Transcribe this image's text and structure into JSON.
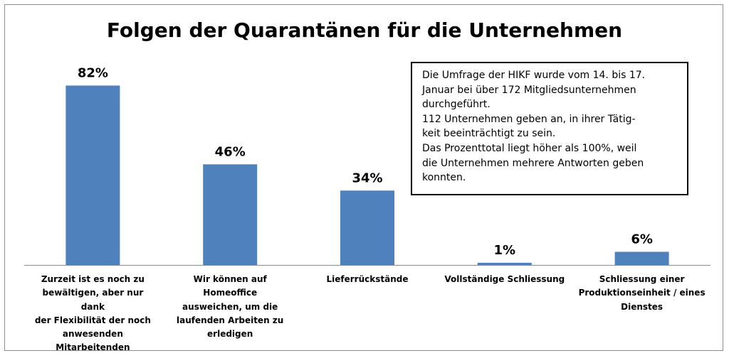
{
  "chart_data": {
    "type": "bar",
    "title": "Folgen der Quarantänen für die Unternehmen",
    "categories": [
      [
        "Zurzeit ist es noch zu",
        "bewältigen, aber nur dank",
        "der Flexibilität der noch",
        "anwesenden",
        "Mitarbeitenden"
      ],
      [
        "Wir können auf Homeoffice",
        "ausweichen, um die",
        "laufenden Arbeiten zu",
        "erledigen"
      ],
      [
        "Lieferrückstände"
      ],
      [
        "Vollständige Schliessung"
      ],
      [
        "Schliessung einer",
        "Produktionseinheit / eines",
        "Dienstes"
      ]
    ],
    "values": [
      82,
      46,
      34,
      1,
      6
    ],
    "data_labels": [
      "82%",
      "46%",
      "34%",
      "1%",
      "6%"
    ],
    "ylim": [
      0,
      100
    ],
    "xlabel": "",
    "ylabel": "",
    "grid": false,
    "legend": "none",
    "bar_color": "#4f81bd",
    "annotation": [
      "Die Umfrage der HIKF wurde vom 14. bis 17.",
      "Januar bei über 172 Mitgliedsunternehmen",
      "durchgeführt.",
      "112 Unternehmen geben an, in ihrer Tätig-",
      "keit beeinträchtigt zu sein.",
      "Das Prozenttotal liegt höher als 100%, weil",
      "die Unternehmen mehrere Antworten geben",
      "konnten."
    ]
  }
}
